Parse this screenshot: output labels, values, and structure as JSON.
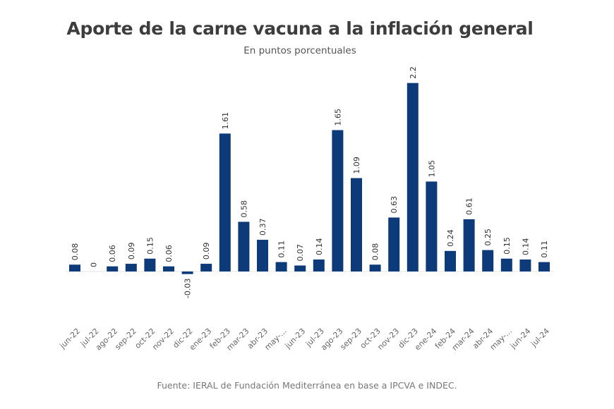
{
  "chart_data": {
    "type": "bar",
    "title": "Aporte de la carne vacuna a la inflación general",
    "subtitle": "En puntos porcentuales",
    "xlabel": "",
    "ylabel": "",
    "categories": [
      "jun-22",
      "jul-22",
      "ago-22",
      "sep-22",
      "oct-22",
      "nov-22",
      "dic-22",
      "ene-23",
      "feb-23",
      "mar-23",
      "abr-23",
      "may-...",
      "jun-23",
      "jul-23",
      "ago-23",
      "sep-23",
      "oct-23",
      "nov-23",
      "dic-23",
      "ene-24",
      "feb-24",
      "mar-24",
      "abr-24",
      "may-...",
      "jun-24",
      "jul-24"
    ],
    "values": [
      0.08,
      0,
      0.06,
      0.09,
      0.15,
      0.06,
      -0.03,
      0.09,
      1.61,
      0.58,
      0.37,
      0.11,
      0.07,
      0.14,
      1.65,
      1.09,
      0.08,
      0.63,
      2.2,
      1.05,
      0.24,
      0.61,
      0.25,
      0.15,
      0.14,
      0.11
    ],
    "data_labels": [
      "0.08",
      "0",
      "0.06",
      "0.09",
      "0.15",
      "0.06",
      "-0.03",
      "0.09",
      "1.61",
      "0.58",
      "0.37",
      "0.11",
      "0.07",
      "0.14",
      "1.65",
      "1.09",
      "0.08",
      "0.63",
      "2.2",
      "1.05",
      "0.24",
      "0.61",
      "0.25",
      "0.15",
      "0.14",
      "0.11"
    ],
    "ylim": [
      -0.5,
      2.3
    ],
    "grid": false,
    "legend": "none",
    "bar_color": "#0d3a78",
    "source": "Fuente: IERAL de Fundación Mediterránea en base a IPCVA e INDEC."
  }
}
